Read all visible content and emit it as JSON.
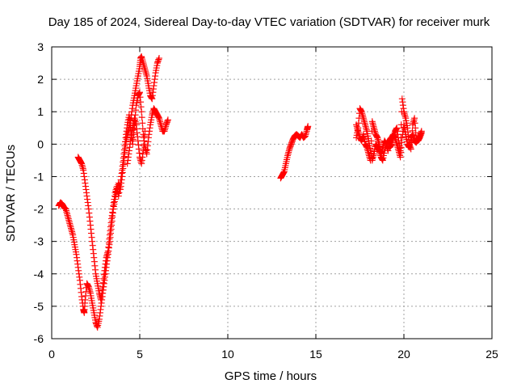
{
  "chart_data": {
    "type": "scatter",
    "title": "Day 185 of 2024, Sidereal Day-to-day VTEC variation (SDTVAR) for receiver murk",
    "xlabel": "GPS time / hours",
    "ylabel": "SDTVAR / TECUs",
    "xlim": [
      0,
      25
    ],
    "ylim": [
      -6,
      3
    ],
    "xticks": [
      0,
      5,
      10,
      15,
      20,
      25
    ],
    "yticks": [
      -6,
      -5,
      -4,
      -3,
      -2,
      -1,
      0,
      1,
      2,
      3
    ],
    "xtick_labels": [
      "0",
      "5",
      "10",
      "15",
      "20",
      "25"
    ],
    "ytick_labels": [
      "-6",
      "-5",
      "-4",
      "-3",
      "-2",
      "-1",
      "0",
      "1",
      "2",
      "3"
    ],
    "grid": true,
    "marker": "+",
    "series": [
      {
        "name": "SDTVAR",
        "color": "#ff0000",
        "segments": [
          [
            [
              0.4,
              -1.9
            ],
            [
              0.5,
              -1.8
            ],
            [
              0.6,
              -1.85
            ],
            [
              0.7,
              -1.95
            ],
            [
              0.8,
              -2.0
            ],
            [
              0.9,
              -2.2
            ],
            [
              1.0,
              -2.4
            ],
            [
              1.1,
              -2.6
            ],
            [
              1.2,
              -2.8
            ],
            [
              1.3,
              -3.1
            ],
            [
              1.4,
              -3.4
            ],
            [
              1.5,
              -3.8
            ],
            [
              1.6,
              -4.2
            ],
            [
              1.7,
              -4.7
            ],
            [
              1.8,
              -5.1
            ],
            [
              1.85,
              -5.2
            ],
            [
              1.9,
              -4.8
            ],
            [
              2.0,
              -4.3
            ],
            [
              2.1,
              -4.4
            ],
            [
              2.2,
              -4.6
            ],
            [
              2.3,
              -4.9
            ],
            [
              2.4,
              -5.2
            ],
            [
              2.5,
              -5.5
            ],
            [
              2.6,
              -5.65
            ],
            [
              2.7,
              -5.4
            ],
            [
              2.8,
              -5.0
            ],
            [
              2.9,
              -4.6
            ],
            [
              3.0,
              -4.2
            ],
            [
              3.1,
              -3.8
            ],
            [
              3.2,
              -3.4
            ],
            [
              3.3,
              -3.0
            ],
            [
              3.4,
              -2.5
            ],
            [
              3.5,
              -2.0
            ],
            [
              3.6,
              -1.7
            ],
            [
              3.7,
              -1.4
            ],
            [
              3.8,
              -1.2
            ],
            [
              3.9,
              -1.4
            ],
            [
              4.0,
              -1.0
            ],
            [
              4.1,
              -0.5
            ],
            [
              4.2,
              0.0
            ],
            [
              4.3,
              0.3
            ],
            [
              4.4,
              0.5
            ],
            [
              4.5,
              0.8
            ],
            [
              4.6,
              1.2
            ],
            [
              4.7,
              1.5
            ],
            [
              4.8,
              1.8
            ],
            [
              4.9,
              2.1
            ],
            [
              5.0,
              2.4
            ],
            [
              5.05,
              2.65
            ],
            [
              5.1,
              2.7
            ],
            [
              5.2,
              2.5
            ],
            [
              5.3,
              2.3
            ],
            [
              5.4,
              2.1
            ],
            [
              5.5,
              1.8
            ],
            [
              5.6,
              1.5
            ],
            [
              5.7,
              1.4
            ],
            [
              5.8,
              1.8
            ],
            [
              5.9,
              2.2
            ],
            [
              6.0,
              2.5
            ],
            [
              6.1,
              2.65
            ]
          ],
          [
            [
              1.5,
              -0.4
            ],
            [
              1.6,
              -0.5
            ],
            [
              1.7,
              -0.6
            ],
            [
              1.8,
              -0.8
            ],
            [
              1.9,
              -1.2
            ],
            [
              2.0,
              -1.6
            ],
            [
              2.1,
              -2.0
            ],
            [
              2.2,
              -2.5
            ],
            [
              2.3,
              -3.0
            ],
            [
              2.4,
              -3.5
            ],
            [
              2.5,
              -4.0
            ],
            [
              2.6,
              -4.3
            ],
            [
              2.7,
              -4.6
            ],
            [
              2.8,
              -4.8
            ],
            [
              2.9,
              -4.4
            ],
            [
              3.0,
              -3.9
            ],
            [
              3.1,
              -3.5
            ],
            [
              3.2,
              -3.3
            ],
            [
              3.3,
              -2.8
            ],
            [
              3.4,
              -2.3
            ],
            [
              3.5,
              -1.9
            ],
            [
              3.6,
              -1.5
            ],
            [
              3.7,
              -1.3
            ],
            [
              3.8,
              -1.6
            ],
            [
              3.9,
              -1.2
            ],
            [
              4.0,
              -0.8
            ],
            [
              4.1,
              -0.3
            ],
            [
              4.2,
              0.2
            ],
            [
              4.3,
              0.6
            ],
            [
              4.4,
              0.9
            ],
            [
              4.5,
              0.4
            ],
            [
              4.6,
              0.0
            ],
            [
              4.7,
              0.6
            ],
            [
              4.8,
              1.2
            ],
            [
              4.9,
              1.5
            ],
            [
              5.0,
              1.6
            ],
            [
              5.1,
              1.0
            ],
            [
              5.2,
              0.3
            ],
            [
              5.3,
              -0.1
            ],
            [
              5.4,
              -0.3
            ],
            [
              5.5,
              0.2
            ],
            [
              5.6,
              0.6
            ],
            [
              5.7,
              0.9
            ],
            [
              5.8,
              1.1
            ],
            [
              5.9,
              1.0
            ],
            [
              6.0,
              0.9
            ],
            [
              6.1,
              0.8
            ],
            [
              6.2,
              0.6
            ],
            [
              6.3,
              0.4
            ],
            [
              6.4,
              0.4
            ],
            [
              6.5,
              0.6
            ],
            [
              6.6,
              0.75
            ]
          ],
          [
            [
              4.3,
              -0.6
            ],
            [
              4.4,
              -0.2
            ],
            [
              4.5,
              0.2
            ],
            [
              4.6,
              0.5
            ],
            [
              4.7,
              0.8
            ],
            [
              4.8,
              0.6
            ],
            [
              4.9,
              0.1
            ],
            [
              5.0,
              -0.4
            ],
            [
              5.1,
              -0.6
            ],
            [
              5.2,
              -0.2
            ],
            [
              5.3,
              0.4
            ]
          ],
          [
            [
              13.0,
              -1.05
            ],
            [
              13.1,
              -0.95
            ],
            [
              13.2,
              -0.85
            ],
            [
              13.3,
              -0.6
            ],
            [
              13.4,
              -0.35
            ],
            [
              13.5,
              -0.15
            ],
            [
              13.6,
              0.0
            ],
            [
              13.7,
              0.15
            ],
            [
              13.8,
              0.25
            ],
            [
              13.9,
              0.3
            ],
            [
              14.0,
              0.25
            ],
            [
              14.1,
              0.2
            ],
            [
              14.2,
              0.3
            ],
            [
              14.3,
              0.2
            ],
            [
              14.4,
              0.25
            ],
            [
              14.5,
              0.45
            ],
            [
              14.55,
              0.55
            ]
          ],
          [
            [
              17.3,
              0.2
            ],
            [
              17.4,
              0.5
            ],
            [
              17.5,
              1.1
            ],
            [
              17.6,
              1.0
            ],
            [
              17.7,
              0.8
            ],
            [
              17.8,
              0.6
            ],
            [
              17.9,
              0.4
            ],
            [
              18.0,
              0.1
            ],
            [
              18.1,
              -0.2
            ],
            [
              18.2,
              -0.5
            ],
            [
              18.3,
              -0.3
            ],
            [
              18.4,
              0.0
            ],
            [
              18.5,
              -0.1
            ],
            [
              18.6,
              -0.2
            ],
            [
              18.7,
              -0.4
            ],
            [
              18.8,
              -0.5
            ],
            [
              18.9,
              -0.2
            ],
            [
              19.0,
              0.0
            ],
            [
              19.1,
              0.1
            ],
            [
              19.2,
              -0.1
            ],
            [
              19.3,
              0.0
            ],
            [
              19.4,
              0.2
            ],
            [
              19.5,
              0.4
            ],
            [
              19.6,
              0.5
            ],
            [
              19.7,
              0.1
            ],
            [
              19.8,
              -0.2
            ],
            [
              19.9,
              1.4
            ],
            [
              20.0,
              1.0
            ],
            [
              20.1,
              0.8
            ],
            [
              20.2,
              0.5
            ],
            [
              20.3,
              0.0
            ],
            [
              20.4,
              -0.15
            ],
            [
              20.5,
              0.6
            ],
            [
              20.6,
              0.8
            ],
            [
              20.7,
              0.2
            ],
            [
              20.8,
              0.1
            ],
            [
              20.9,
              0.2
            ],
            [
              21.0,
              0.35
            ]
          ],
          [
            [
              17.3,
              0.6
            ],
            [
              17.4,
              0.4
            ],
            [
              17.5,
              0.2
            ],
            [
              17.6,
              0.1
            ],
            [
              17.7,
              0.3
            ],
            [
              17.8,
              0.0
            ],
            [
              17.9,
              -0.1
            ],
            [
              18.0,
              -0.3
            ],
            [
              18.1,
              -0.5
            ],
            [
              18.2,
              0.7
            ],
            [
              18.3,
              0.5
            ],
            [
              18.4,
              0.3
            ],
            [
              18.5,
              0.2
            ],
            [
              18.6,
              0.0
            ],
            [
              18.7,
              -0.3
            ],
            [
              18.8,
              -0.1
            ],
            [
              18.9,
              0.1
            ],
            [
              19.0,
              0.0
            ],
            [
              19.1,
              -0.2
            ],
            [
              19.2,
              0.1
            ],
            [
              19.3,
              0.2
            ],
            [
              19.4,
              0.3
            ],
            [
              19.5,
              0.2
            ],
            [
              19.6,
              0.0
            ],
            [
              19.7,
              -0.2
            ],
            [
              19.8,
              -0.4
            ],
            [
              19.9,
              0.2
            ],
            [
              20.0,
              0.6
            ],
            [
              20.1,
              0.3
            ],
            [
              20.2,
              0.0
            ],
            [
              20.3,
              -0.1
            ],
            [
              20.4,
              0.2
            ],
            [
              20.5,
              0.3
            ],
            [
              20.6,
              0.1
            ],
            [
              20.7,
              0.05
            ],
            [
              20.8,
              0.15
            ],
            [
              20.9,
              0.25
            ],
            [
              21.0,
              0.4
            ]
          ]
        ]
      }
    ]
  }
}
